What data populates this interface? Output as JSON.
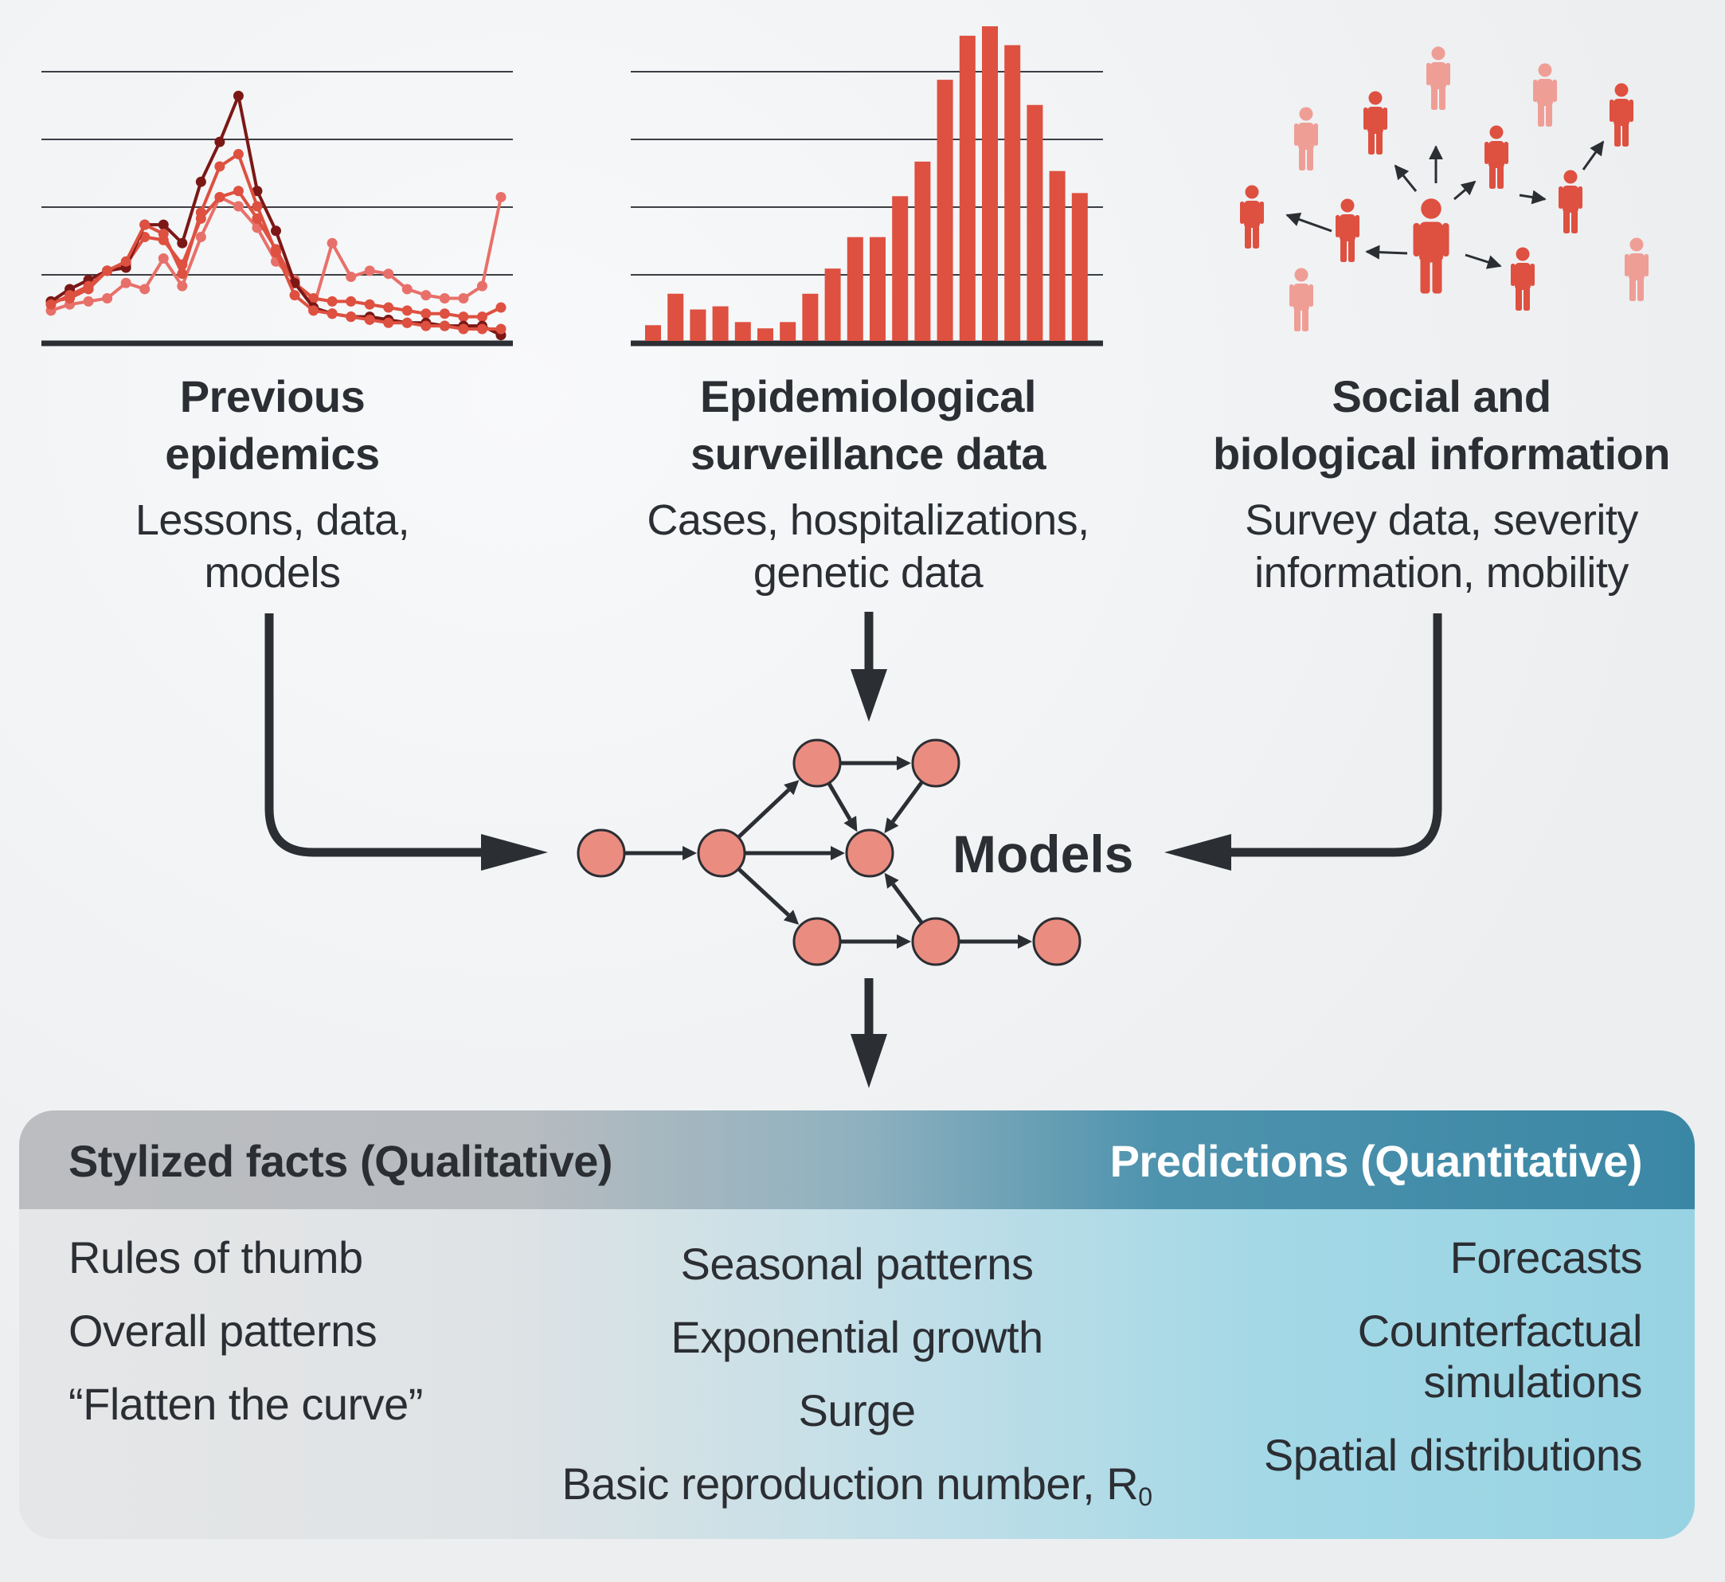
{
  "sources": [
    {
      "title_lines": [
        "Previous",
        "epidemics"
      ],
      "subtitle_lines": [
        "Lessons, data,",
        "models"
      ]
    },
    {
      "title_lines": [
        "Epidemiological",
        "surveillance data"
      ],
      "subtitle_lines": [
        "Cases, hospitalizations,",
        "genetic data"
      ]
    },
    {
      "title_lines": [
        "Social and",
        "biological information"
      ],
      "subtitle_lines": [
        "Survey data, severity",
        "information, mobility"
      ]
    }
  ],
  "models_label": "Models",
  "panel": {
    "left_header": "Stylized facts (Qualitative)",
    "right_header": "Predictions (Quantitative)",
    "left_items": [
      "Rules of thumb",
      "Overall patterns",
      "“Flatten the curve”"
    ],
    "center_items": [
      "Seasonal patterns",
      "Exponential  growth",
      "Surge"
    ],
    "center_last_text": "Basic reproduction number, R",
    "center_last_subscript": "0",
    "right_items": [
      "Forecasts",
      "Counterfactual",
      "simulations",
      "Spatial distributions"
    ]
  },
  "colors": {
    "dark_text": "#2b2e33",
    "red": "#de5040",
    "dark_red": "#7b1816",
    "light_red": "#e8706a",
    "pink": "#ef9e96",
    "node": "#ea8c80",
    "panel_teal": "#3a87a5",
    "panel_light_blue": "#98d3e3",
    "arrow": "#2b2e33"
  },
  "line_chart": {
    "series": [
      {
        "values": [
          8,
          11,
          14,
          19,
          22,
          34,
          31,
          18,
          38,
          53,
          57,
          40,
          25,
          11,
          6,
          5,
          4,
          3,
          2,
          2,
          1,
          1,
          0,
          0,
          0
        ]
      },
      {
        "values": [
          9,
          13,
          16,
          19,
          20,
          34,
          34,
          28,
          48,
          61,
          76,
          45,
          32,
          15,
          7,
          5,
          4,
          4,
          3,
          2,
          2,
          1,
          1,
          1,
          -2
        ]
      },
      {
        "values": [
          6,
          8,
          9,
          10,
          15,
          13,
          23,
          14,
          30,
          43,
          40,
          33,
          22,
          16,
          7,
          28,
          17,
          19,
          18,
          13,
          11,
          10,
          10,
          14,
          43
        ]
      },
      {
        "values": [
          9,
          10,
          13,
          19,
          21,
          30,
          29,
          21,
          36,
          43,
          45,
          36,
          26,
          15,
          10,
          9,
          9,
          8,
          7,
          6,
          5,
          5,
          4,
          4,
          7
        ]
      }
    ]
  },
  "bar_chart": {
    "values": [
      5,
      15,
      10,
      11,
      6,
      4,
      6,
      15,
      23,
      33,
      33,
      46,
      57,
      83,
      97,
      100,
      94,
      75,
      54,
      47
    ]
  }
}
